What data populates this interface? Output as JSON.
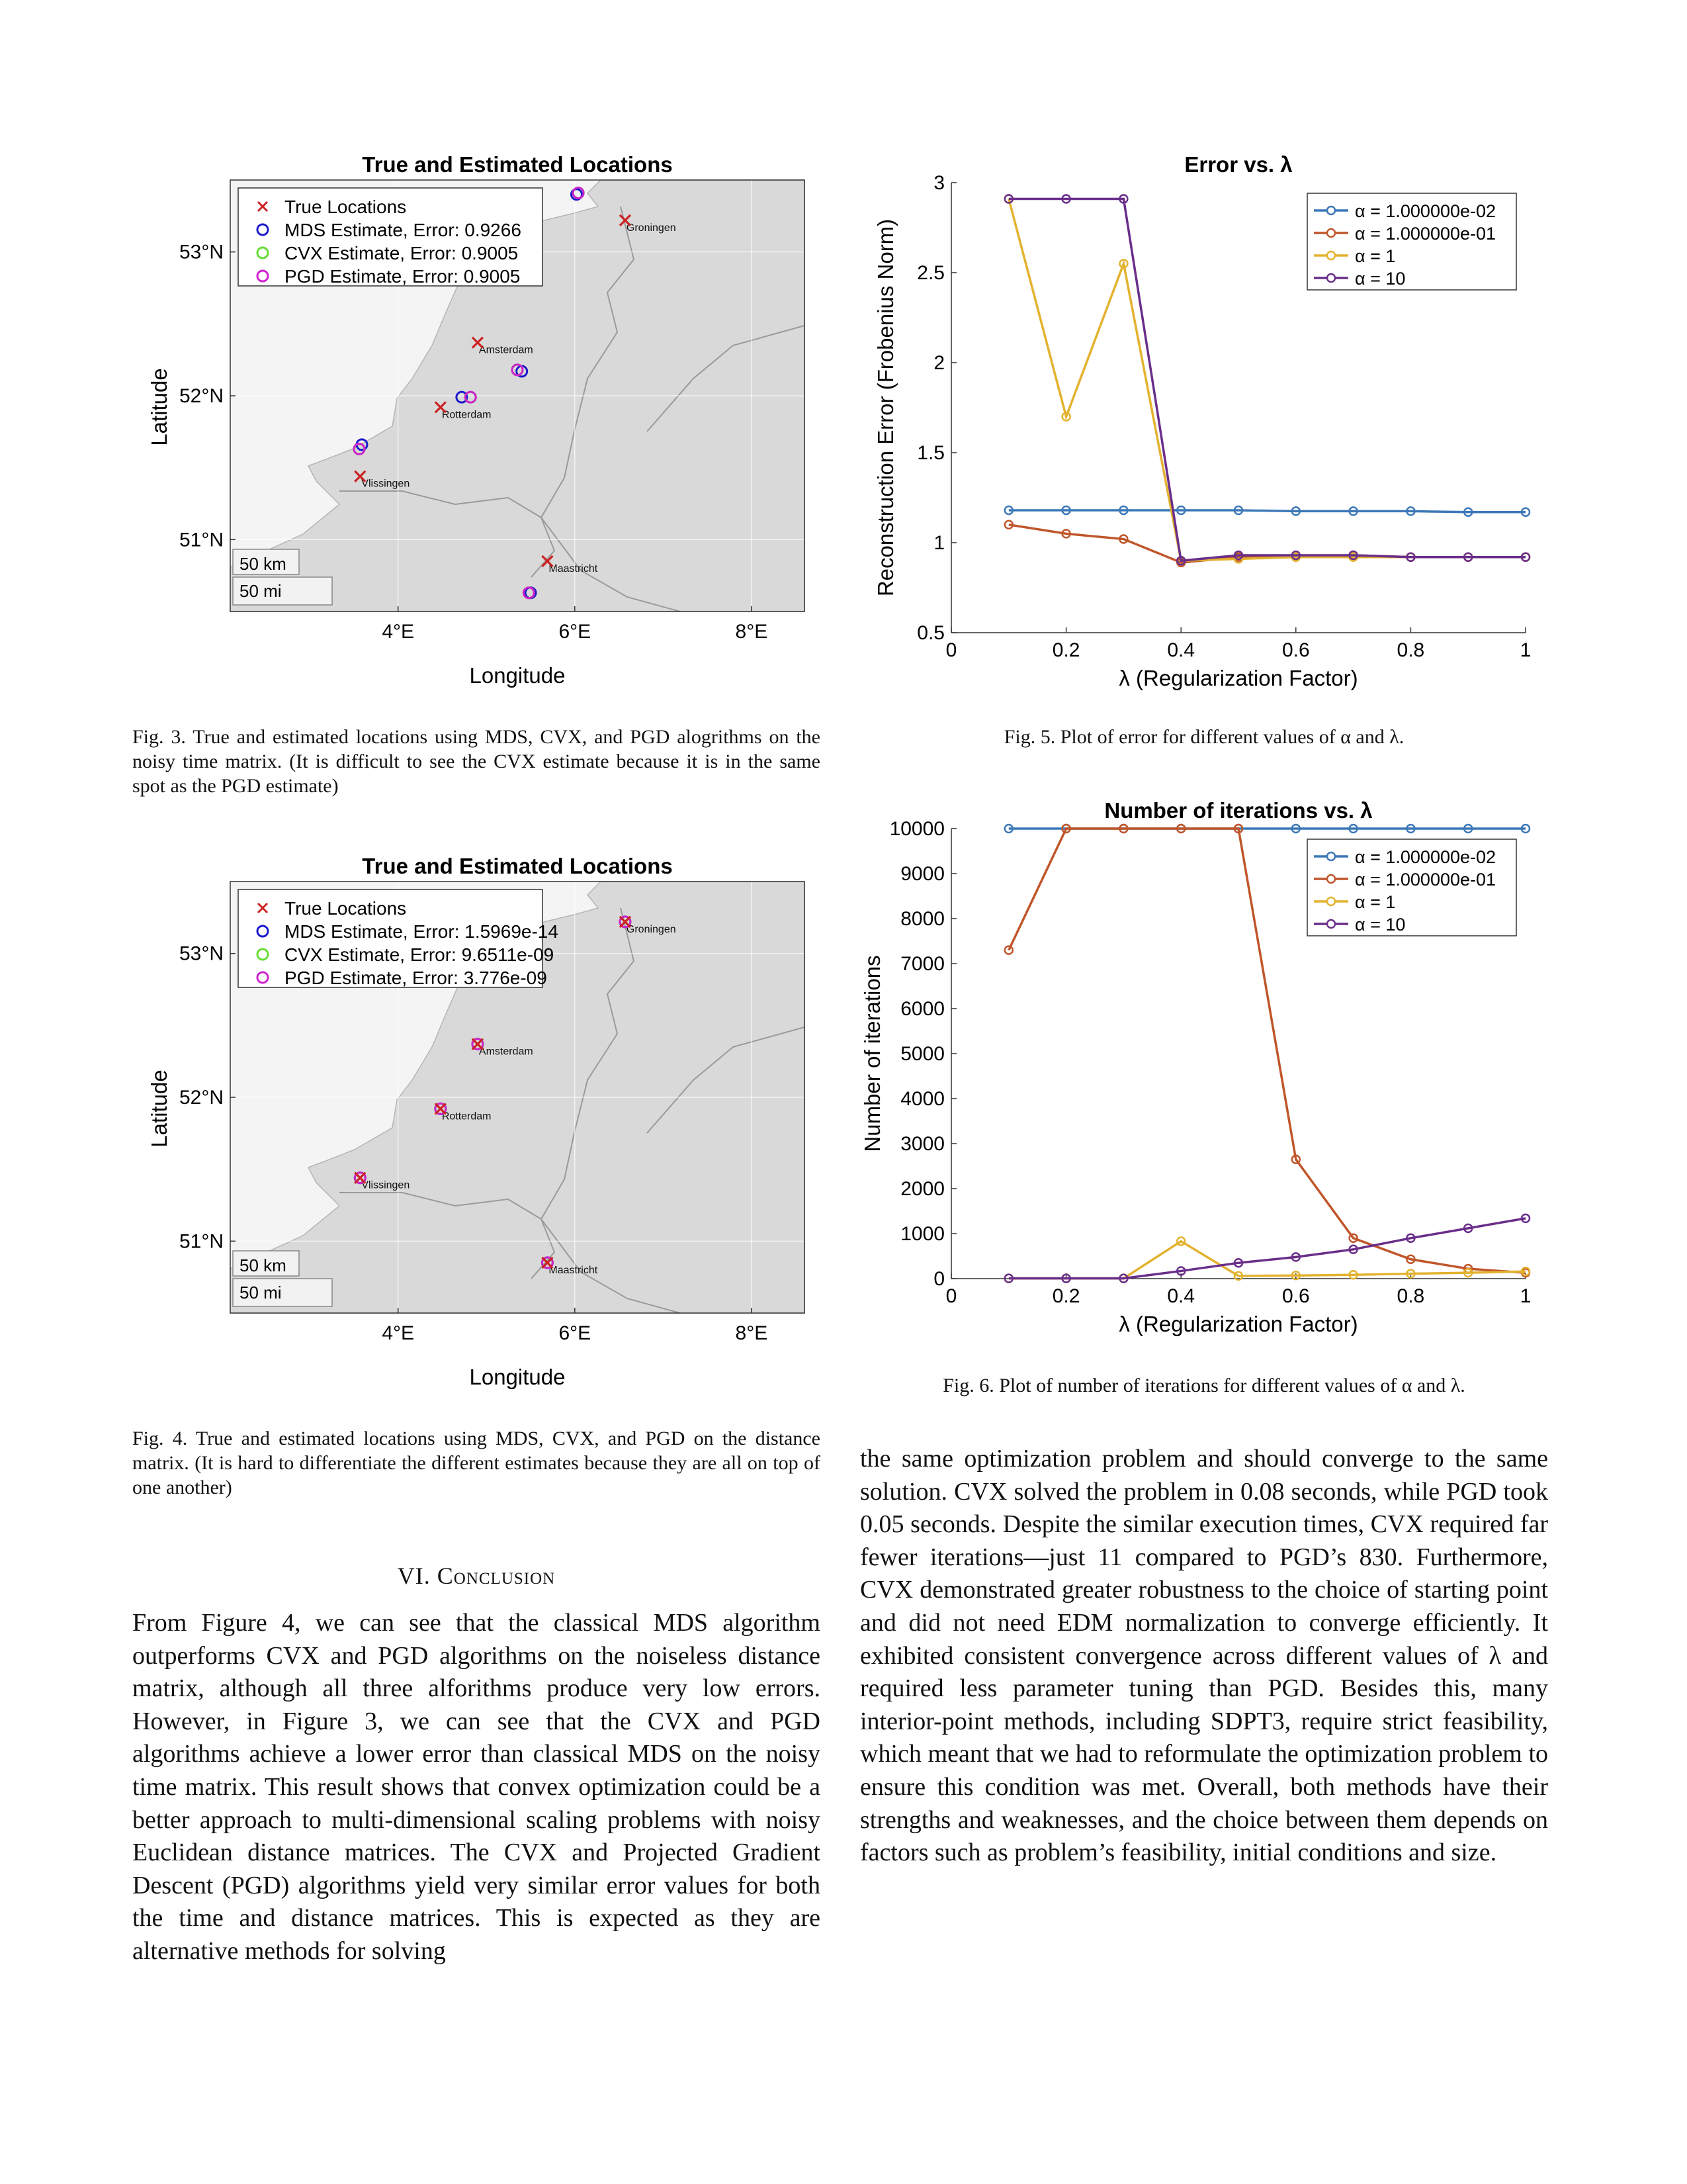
{
  "fig3": {
    "title": "True and Estimated Locations",
    "xlabel": "Longitude",
    "ylabel": "Latitude",
    "xticks": [
      "4°E",
      "6°E",
      "8°E"
    ],
    "yticks": [
      "53°N",
      "52°N",
      "51°N"
    ],
    "legend": [
      "True Locations",
      "MDS Estimate, Error: 0.9266",
      "CVX Estimate, Error: 0.9005",
      "PGD Estimate, Error: 0.9005"
    ],
    "cities": [
      "Groningen",
      "Amsterdam",
      "Rotterdam",
      "Vlissingen",
      "Maastricht"
    ],
    "scale": [
      "50 km",
      "50 mi"
    ],
    "caption": "Fig. 3.  True and estimated locations using MDS, CVX, and PGD alogrithms on the noisy time matrix. (It is difficult to see the CVX estimate because it is in the same spot as the PGD estimate)"
  },
  "fig4": {
    "title": "True and Estimated Locations",
    "xlabel": "Longitude",
    "ylabel": "Latitude",
    "xticks": [
      "4°E",
      "6°E",
      "8°E"
    ],
    "yticks": [
      "53°N",
      "52°N",
      "51°N"
    ],
    "legend": [
      "True Locations",
      "MDS Estimate, Error: 1.5969e-14",
      "CVX Estimate, Error: 9.6511e-09",
      "PGD Estimate, Error: 3.776e-09"
    ],
    "cities": [
      "Groningen",
      "Amsterdam",
      "Rotterdam",
      "Vlissingen",
      "Maastricht"
    ],
    "scale": [
      "50 km",
      "50 mi"
    ],
    "caption": "Fig. 4.  True and estimated locations using MDS, CVX, and PGD on the distance matrix. (It is hard to differentiate the different estimates because they are all on top of one another)"
  },
  "fig5": {
    "caption": "Fig. 5.  Plot of error for different values of α and λ."
  },
  "fig6": {
    "caption": "Fig. 6.  Plot of number of iterations for different values of α and λ."
  },
  "colors": {
    "true": "#cc2222",
    "mds": "#1a1acc",
    "cvx": "#66dd33",
    "pgd": "#cc22cc",
    "land": "#d9d9d9",
    "s1": "#3c78b8",
    "s2": "#c0562a",
    "s3": "#e3b22f",
    "s4": "#6a2e8a"
  },
  "chart_data": [
    {
      "type": "scatter",
      "title": "True and Estimated Locations",
      "xlabel": "Longitude",
      "ylabel": "Latitude",
      "xlim": [
        2.1,
        8.6
      ],
      "ylim": [
        50.5,
        53.5
      ],
      "series": [
        {
          "name": "True Locations",
          "x": [
            6.57,
            4.9,
            4.48,
            3.57,
            5.69
          ],
          "y": [
            53.22,
            52.37,
            51.92,
            51.44,
            50.85
          ]
        },
        {
          "name": "MDS Estimate, Error: 0.9266",
          "x": [
            6.02,
            5.4,
            4.72,
            3.59,
            5.5
          ],
          "y": [
            53.4,
            52.17,
            51.99,
            51.66,
            50.63
          ]
        },
        {
          "name": "CVX Estimate, Error: 0.9005",
          "x": [
            6.04,
            5.35,
            4.82,
            3.56,
            5.48
          ],
          "y": [
            53.41,
            52.18,
            51.99,
            51.63,
            50.63
          ]
        },
        {
          "name": "PGD Estimate, Error: 0.9005",
          "x": [
            6.04,
            5.35,
            4.82,
            3.56,
            5.48
          ],
          "y": [
            53.41,
            52.18,
            51.99,
            51.63,
            50.63
          ]
        }
      ]
    },
    {
      "type": "scatter",
      "title": "True and Estimated Locations",
      "xlabel": "Longitude",
      "ylabel": "Latitude",
      "xlim": [
        2.1,
        8.6
      ],
      "ylim": [
        50.5,
        53.5
      ],
      "series": [
        {
          "name": "True Locations",
          "x": [
            6.57,
            4.9,
            4.48,
            3.57,
            5.69
          ],
          "y": [
            53.22,
            52.37,
            51.92,
            51.44,
            50.85
          ]
        },
        {
          "name": "MDS Estimate, Error: 1.5969e-14",
          "x": [
            6.57,
            4.9,
            4.48,
            3.57,
            5.69
          ],
          "y": [
            53.22,
            52.37,
            51.92,
            51.44,
            50.85
          ]
        },
        {
          "name": "CVX Estimate, Error: 9.6511e-09",
          "x": [
            6.57,
            4.9,
            4.48,
            3.57,
            5.69
          ],
          "y": [
            53.22,
            52.37,
            51.92,
            51.44,
            50.85
          ]
        },
        {
          "name": "PGD Estimate, Error: 3.776e-09",
          "x": [
            6.57,
            4.9,
            4.48,
            3.57,
            5.69
          ],
          "y": [
            53.22,
            52.37,
            51.92,
            51.44,
            50.85
          ]
        }
      ]
    },
    {
      "type": "line",
      "title": "Error vs. λ",
      "xlabel": "λ (Regularization Factor)",
      "ylabel": "Reconstruction Error (Frobenius Norm)",
      "xlim": [
        0,
        1
      ],
      "ylim": [
        0.5,
        3
      ],
      "xticks": [
        "0",
        "0.2",
        "0.4",
        "0.6",
        "0.8",
        "1"
      ],
      "yticks": [
        "0.5",
        "1",
        "1.5",
        "2",
        "2.5",
        "3"
      ],
      "legend_position": "top-right",
      "x": [
        0.1,
        0.2,
        0.3,
        0.4,
        0.5,
        0.6,
        0.7,
        0.8,
        0.9,
        1.0
      ],
      "series": [
        {
          "name": "α = 1.000000e-02",
          "values": [
            1.18,
            1.18,
            1.18,
            1.18,
            1.18,
            1.175,
            1.175,
            1.175,
            1.17,
            1.17
          ]
        },
        {
          "name": "α = 1.000000e-01",
          "values": [
            1.1,
            1.05,
            1.02,
            0.89,
            0.92,
            0.92,
            0.93,
            0.92,
            0.92,
            0.92
          ]
        },
        {
          "name": "α = 1",
          "values": [
            2.91,
            1.7,
            2.55,
            0.9,
            0.91,
            0.92,
            0.92,
            0.92,
            0.92,
            0.92
          ]
        },
        {
          "name": "α = 10",
          "values": [
            2.91,
            2.91,
            2.91,
            0.9,
            0.93,
            0.93,
            0.93,
            0.92,
            0.92,
            0.92
          ]
        }
      ]
    },
    {
      "type": "line",
      "title": "Number of iterations vs. λ",
      "xlabel": "λ (Regularization Factor)",
      "ylabel": "Number of iterations",
      "xlim": [
        0,
        1
      ],
      "ylim": [
        0,
        10000
      ],
      "xticks": [
        "0",
        "0.2",
        "0.4",
        "0.6",
        "0.8",
        "1"
      ],
      "yticks": [
        "0",
        "1000",
        "2000",
        "3000",
        "4000",
        "5000",
        "6000",
        "7000",
        "8000",
        "9000",
        "10000"
      ],
      "legend_position": "top-right",
      "x": [
        0.1,
        0.2,
        0.3,
        0.4,
        0.5,
        0.6,
        0.7,
        0.8,
        0.9,
        1.0
      ],
      "series": [
        {
          "name": "α = 1.000000e-02",
          "values": [
            10000,
            10000,
            10000,
            10000,
            10000,
            10000,
            10000,
            10000,
            10000,
            10000
          ]
        },
        {
          "name": "α = 1.000000e-01",
          "values": [
            7300,
            10000,
            10000,
            10000,
            10000,
            2650,
            900,
            430,
            220,
            130
          ]
        },
        {
          "name": "α = 1",
          "values": [
            5,
            5,
            5,
            830,
            60,
            70,
            85,
            110,
            130,
            160
          ]
        },
        {
          "name": "α = 10",
          "values": [
            5,
            5,
            5,
            170,
            350,
            480,
            650,
            900,
            1120,
            1340
          ]
        }
      ]
    }
  ],
  "section": {
    "number": "VI.",
    "title": "Conclusion"
  },
  "left_paragraph": "From Figure 4, we can see that the classical MDS algorithm outperforms CVX and PGD algorithms on the noiseless dis­tance matrix, although all three alforithms produce very low errors. However, in Figure 3, we can see that the CVX and PGD algorithms achieve a lower error than classical MDS on the noisy time matrix. This result shows that convex optimiza­tion could be a better approach to multi-dimensional scaling problems with noisy Euclidean distance matrices. The CVX and Projected Gradient Descent (PGD) algorithms yield very similar error values for both the time and distance matrices. This is expected as they are alternative methods for solving",
  "right_paragraph": "the same optimization problem and should converge to the same solution. CVX solved the problem in 0.08 seconds, while PGD took 0.05 seconds. Despite the similar execution times, CVX required far fewer iterations—just 11 compared to PGD’s 830. Furthermore, CVX demonstrated greater robustness to the choice of starting point and did not need EDM normalization to converge efficiently. It exhibited consistent convergence across different values of λ and required less parameter tuning than PGD. Besides this, many interior-point methods, including SDPT3, require strict feasibility, which meant that we had to reformulate the optimization problem to ensure this condition was met. Overall, both methods have their strengths and weaknesses, and the choice between them depends on factors such as problem’s feasibility, initial conditions and size."
}
